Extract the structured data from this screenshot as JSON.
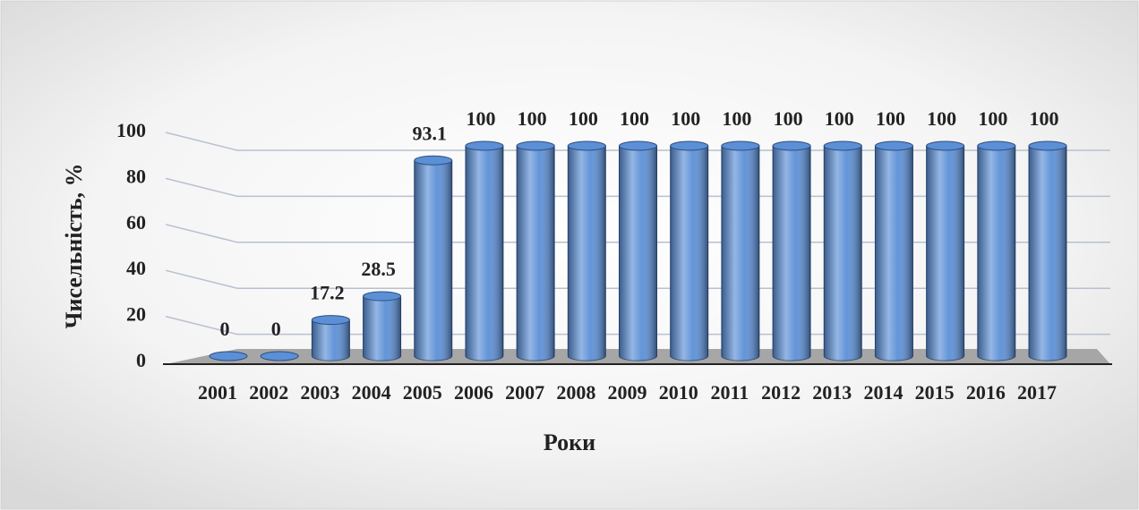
{
  "chart_data": {
    "type": "bar",
    "xlabel": "Роки",
    "ylabel": "Чисельність, %",
    "categories": [
      "2001",
      "2002",
      "2003",
      "2004",
      "2005",
      "2006",
      "2007",
      "2008",
      "2009",
      "2010",
      "2011",
      "2012",
      "2013",
      "2014",
      "2015",
      "2016",
      "2017"
    ],
    "values": [
      0,
      0,
      17.2,
      28.5,
      93.1,
      100,
      100,
      100,
      100,
      100,
      100,
      100,
      100,
      100,
      100,
      100,
      100
    ],
    "color": "#5b8fd6",
    "ylim": [
      0,
      100
    ],
    "yticks": [
      0,
      20,
      40,
      60,
      80,
      100
    ],
    "grid": true
  }
}
